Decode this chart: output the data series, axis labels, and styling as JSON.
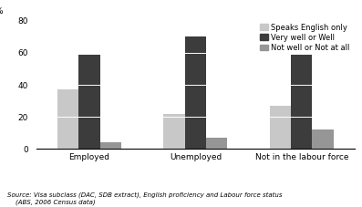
{
  "categories": [
    "Employed",
    "Unemployed",
    "Not in the labour force"
  ],
  "series": [
    {
      "label": "Speaks English only",
      "values": [
        37,
        22,
        27
      ],
      "color": "#c8c8c8"
    },
    {
      "label": "Very well or Well",
      "values": [
        59,
        70,
        59
      ],
      "color": "#3c3c3c"
    },
    {
      "label": "Not well or Not at all",
      "values": [
        4,
        7,
        12
      ],
      "color": "#969696"
    }
  ],
  "ylim": [
    0,
    80
  ],
  "yticks": [
    0,
    20,
    40,
    60,
    80
  ],
  "ylabel": "%",
  "source_line1": "Source: Visa subclass (DAC, SDB extract), English proficiency and Labour force status",
  "source_line2": "    (ABS, 2006 Census data)",
  "bar_width": 0.2,
  "legend_fontsize": 6.0,
  "tick_fontsize": 6.5,
  "source_fontsize": 5.0
}
